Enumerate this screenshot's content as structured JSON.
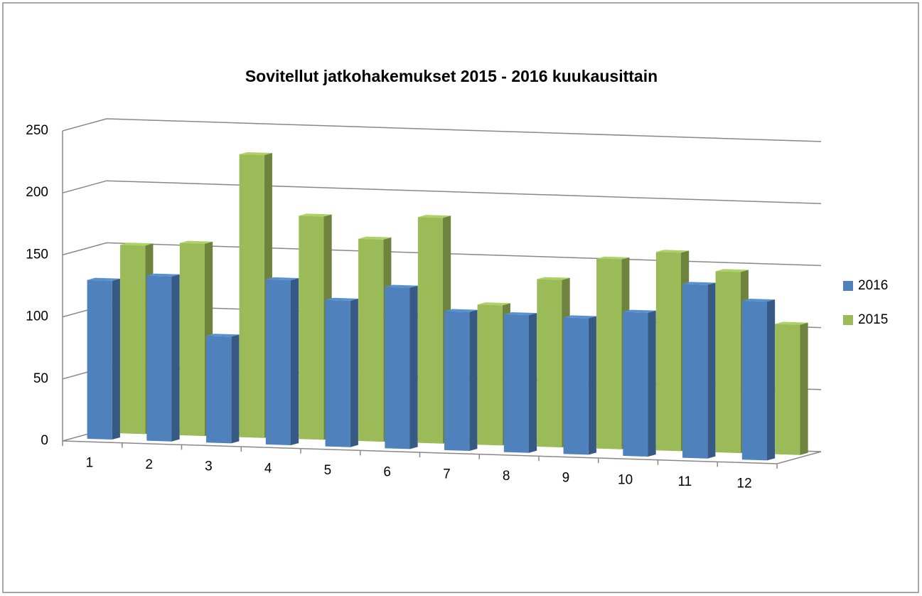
{
  "chart_data": {
    "type": "bar3d",
    "title": "Sovitellut jatkohakemukset 2015 - 2016 kuukausittain",
    "categories": [
      "1",
      "2",
      "3",
      "4",
      "5",
      "6",
      "7",
      "8",
      "9",
      "10",
      "11",
      "12"
    ],
    "series": [
      {
        "name": "2016",
        "color": "#4f81bd",
        "values": [
          128,
          133,
          86,
          133,
          118,
          130,
          112,
          111,
          110,
          116,
          140,
          128
        ]
      },
      {
        "name": "2015",
        "color": "#9bbb59",
        "values": [
          152,
          155,
          228,
          180,
          163,
          182,
          113,
          135,
          153,
          160,
          146,
          105
        ]
      }
    ],
    "ylim": [
      0,
      250
    ],
    "yticks": [
      0,
      50,
      100,
      150,
      200,
      250
    ],
    "grid": true,
    "legend": "right"
  }
}
